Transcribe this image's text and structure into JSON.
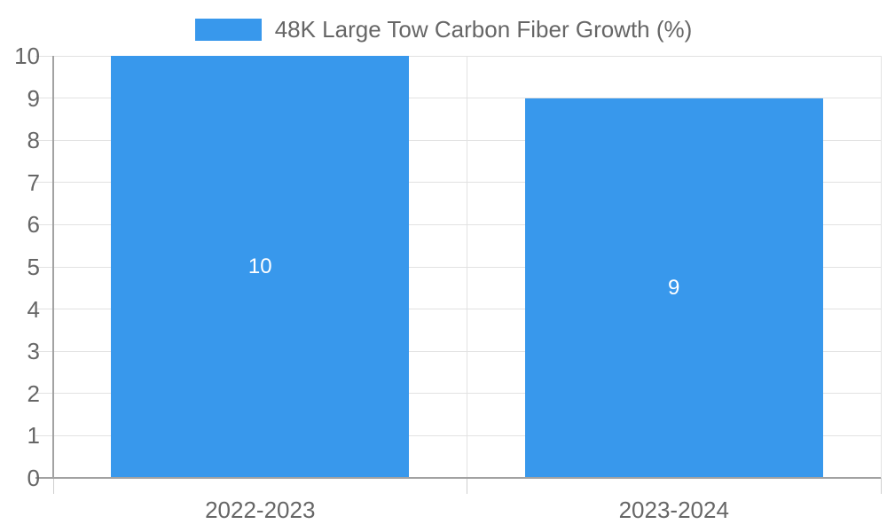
{
  "legend": {
    "label": "48K Large Tow Carbon Fiber Growth (%)"
  },
  "colors": {
    "bar": "#3898ec",
    "grid": "#e2e2e2",
    "axis_border": "#a2a2a2",
    "tick_mark": "#cfcfcf",
    "tick_text": "#666666",
    "bar_label_text": "#ffffff",
    "background": "#ffffff"
  },
  "chart_data": {
    "type": "bar",
    "title": "",
    "xlabel": "",
    "ylabel": "",
    "categories": [
      "2022-2023",
      "2023-2024"
    ],
    "series": [
      {
        "name": "48K Large Tow Carbon Fiber Growth (%)",
        "values": [
          10,
          9
        ]
      }
    ],
    "data_labels": [
      "10",
      "9"
    ],
    "ylim": [
      0,
      10
    ],
    "ytick_step": 1,
    "yticks": [
      0,
      1,
      2,
      3,
      4,
      5,
      6,
      7,
      8,
      9,
      10
    ],
    "grid": true,
    "legend_position": "top-center"
  }
}
